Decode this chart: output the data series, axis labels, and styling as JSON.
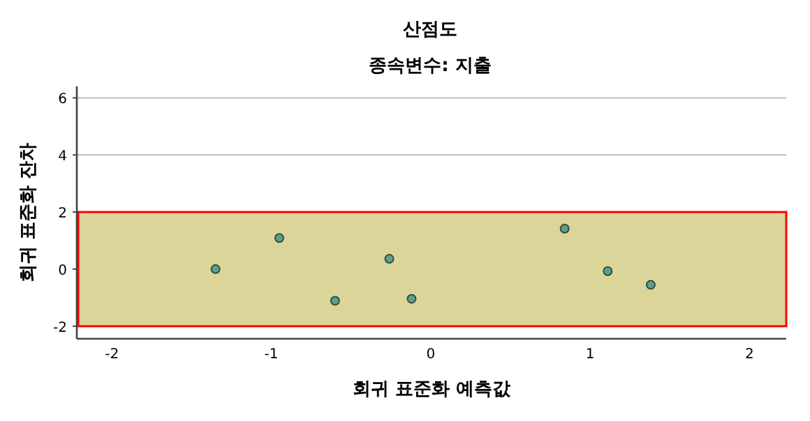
{
  "chart_data": {
    "type": "scatter",
    "title": "산점도",
    "subtitle": "종속변수: 지출",
    "xlabel": "회귀 표준화 예측값",
    "ylabel": "회귀 표준화 잔차",
    "x": [
      -1.35,
      -0.95,
      -0.6,
      -0.26,
      -0.12,
      0.84,
      1.11,
      1.38
    ],
    "series": [
      {
        "color": "#5f9e8a",
        "values": [
          0.0,
          1.09,
          -1.11,
          0.36,
          -1.04,
          1.42,
          -0.07,
          -0.55
        ]
      }
    ],
    "xlim": [
      -2.22,
      2.23
    ],
    "ylim": [
      -2.44,
      6.4
    ],
    "xticks": [
      -2,
      -1,
      0,
      1,
      2
    ],
    "yticks": [
      -2,
      0,
      2,
      4,
      6
    ],
    "grid": "y",
    "marker": "circle",
    "bands": [
      {
        "axis": "y",
        "from": -2,
        "to": 2,
        "color": "#dcd59a"
      }
    ]
  }
}
